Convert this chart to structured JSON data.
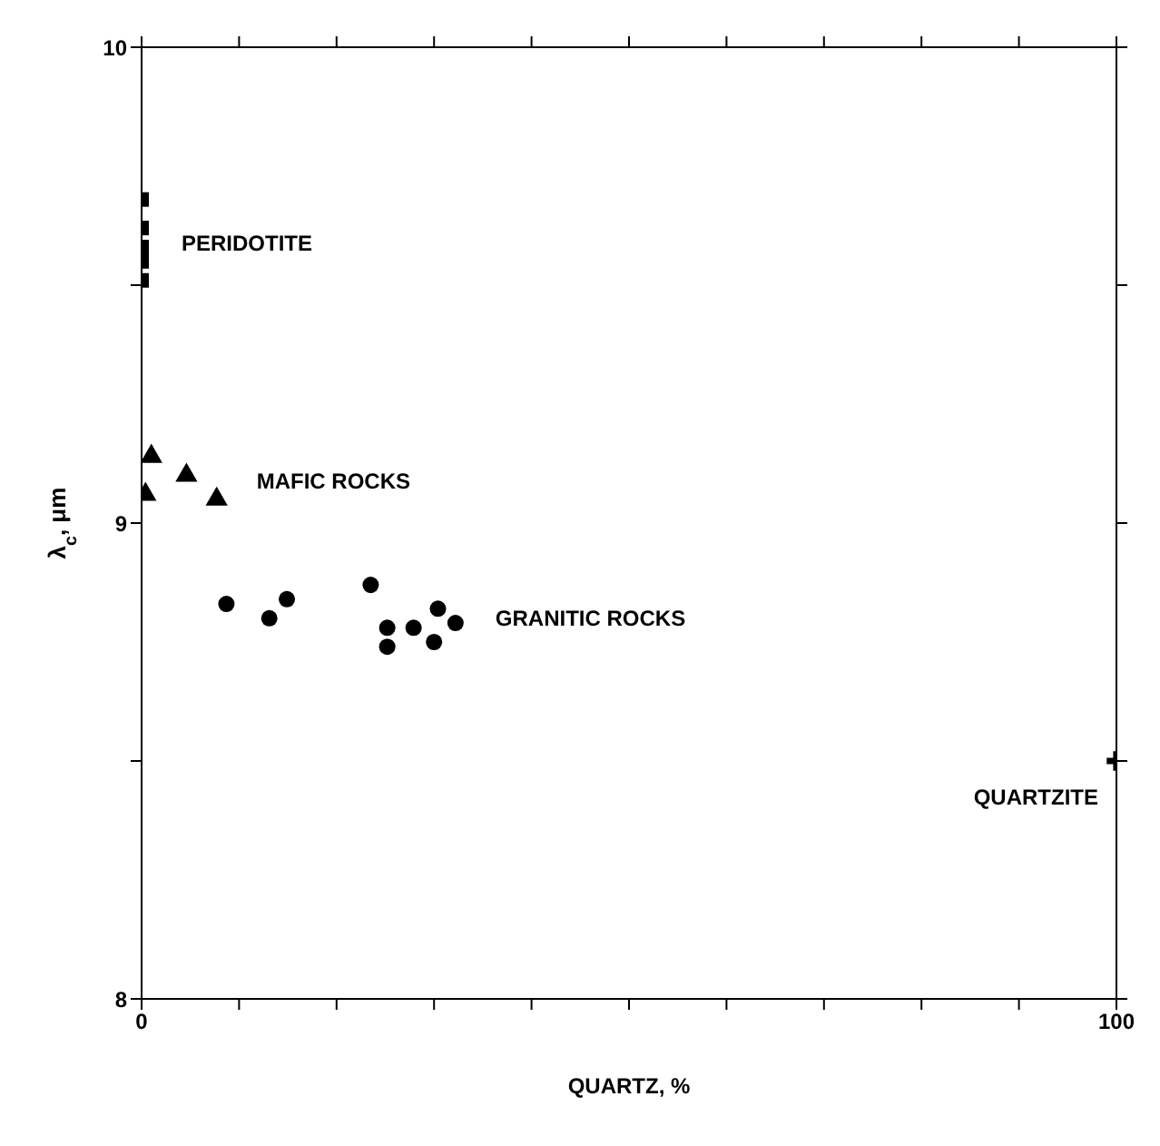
{
  "chart_data": {
    "type": "scatter",
    "xlabel": "QUARTZ, %",
    "ylabel": "λ$_{c}$, μm",
    "xlim": [
      0,
      100
    ],
    "xticks": [
      0,
      {
        "value": 10,
        "label": null
      },
      {
        "value": 20,
        "label": null
      },
      {
        "value": 30,
        "label": null
      },
      {
        "value": 40,
        "label": null
      },
      {
        "value": 50,
        "label": null
      },
      {
        "value": 60,
        "label": null
      },
      {
        "value": 70,
        "label": null
      },
      {
        "value": 80,
        "label": null
      },
      {
        "value": 90,
        "label": null
      },
      100
    ],
    "ylim": [
      8,
      10
    ],
    "yticks": [
      8,
      {
        "value": 8.5,
        "label": null
      },
      9,
      {
        "value": 9.5,
        "label": null
      },
      10
    ],
    "grid": false,
    "legend": false,
    "color": "#000000",
    "series": [
      {
        "name": "PERIDOTITE",
        "marker": "square",
        "x": [
          0,
          0,
          0,
          0,
          0
        ],
        "values": [
          9.68,
          9.62,
          9.58,
          9.55,
          9.51
        ]
      },
      {
        "name": "MAFIC ROCKS",
        "marker": "triangle",
        "x": [
          1.0,
          4.6,
          7.7,
          0.4
        ],
        "values": [
          9.14,
          9.1,
          9.05,
          9.06
        ]
      },
      {
        "name": "GRANITIC ROCKS",
        "marker": "circle",
        "x": [
          8.7,
          13.1,
          14.9,
          23.5,
          25.2,
          25.2,
          27.9,
          30.4,
          32.2,
          30.0
        ],
        "values": [
          8.83,
          8.8,
          8.84,
          8.87,
          8.78,
          8.74,
          8.78,
          8.82,
          8.79,
          8.75
        ]
      },
      {
        "name": "QUARTZITE",
        "marker": "cross",
        "x": [
          100
        ],
        "values": [
          8.5
        ]
      }
    ]
  }
}
